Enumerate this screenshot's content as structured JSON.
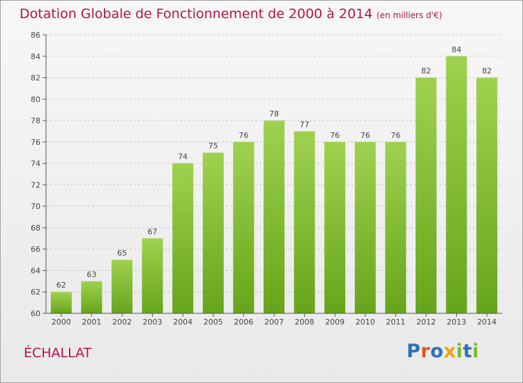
{
  "header": {
    "title": "Dotation Globale de Fonctionnement de 2000 à 2014",
    "unit_note": "(en milliers d'€)"
  },
  "footer": {
    "town": "ÉCHALLAT",
    "brand": "Proxiti",
    "brand_colors": [
      "#2e6fb8",
      "#e2561b",
      "#2e6fb8",
      "#f0a010",
      "#7cb82f",
      "#2e6fb8",
      "#7cb82f"
    ]
  },
  "colors": {
    "title": "#b3134f",
    "bar_light": "#9fd14f",
    "bar_dark": "#66a51b",
    "grid": "#c8c8c8",
    "axis": "#555555"
  },
  "chart_data": {
    "type": "bar",
    "title": "Dotation Globale de Fonctionnement de 2000 à 2014",
    "subtitle": "(en milliers d'€)",
    "categories": [
      "2000",
      "2001",
      "2002",
      "2003",
      "2004",
      "2005",
      "2006",
      "2007",
      "2008",
      "2009",
      "2010",
      "2011",
      "2012",
      "2013",
      "2014"
    ],
    "values": [
      62,
      63,
      65,
      67,
      74,
      75,
      76,
      78,
      77,
      76,
      76,
      76,
      82,
      84,
      82
    ],
    "data_labels": [
      "62",
      "63",
      "65",
      "67",
      "74",
      "75",
      "76",
      "78",
      "77",
      "76",
      "76",
      "76",
      "82",
      "84",
      "82"
    ],
    "ylim": [
      60,
      86
    ],
    "yticks": [
      60,
      62,
      64,
      66,
      68,
      70,
      72,
      74,
      76,
      78,
      80,
      82,
      84,
      86
    ],
    "xlabel": "",
    "ylabel": "",
    "grid": true,
    "legend": "none"
  }
}
